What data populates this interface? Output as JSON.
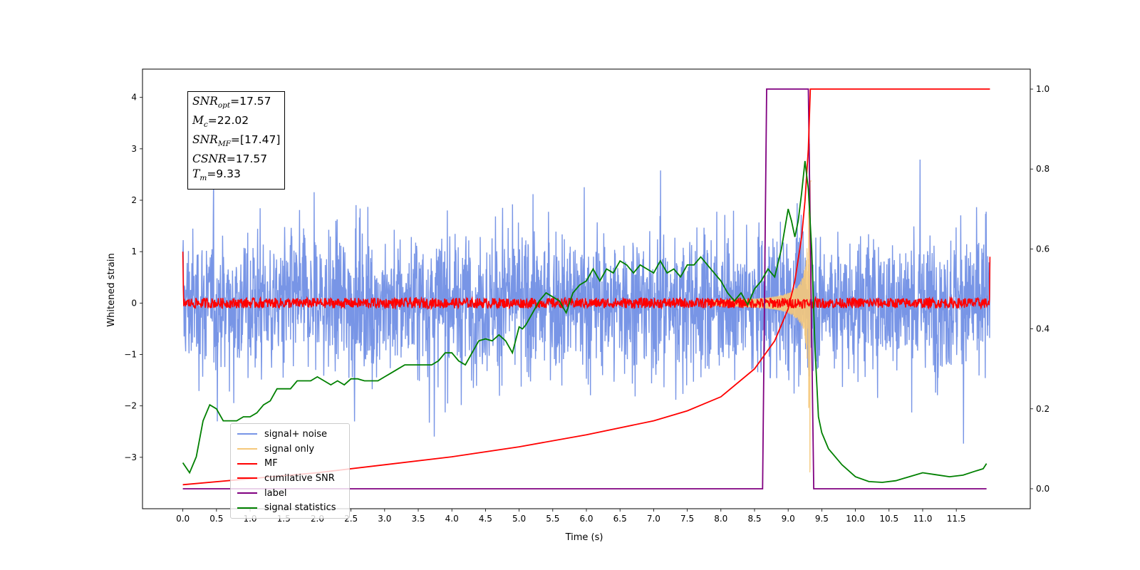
{
  "chart_data": {
    "type": "line",
    "xlabel": "Time (s)",
    "ylabel": "Whitened strain",
    "xlim": [
      -0.6,
      12.6
    ],
    "ylim_left": [
      -4.0,
      4.55
    ],
    "ylim_right": [
      -0.05,
      1.05
    ],
    "x_ticks": [
      "0.0",
      "0.5",
      "1.0",
      "1.5",
      "2.0",
      "2.5",
      "3.0",
      "3.5",
      "4.0",
      "4.5",
      "5.0",
      "5.5",
      "6.0",
      "6.5",
      "7.0",
      "7.5",
      "8.0",
      "8.5",
      "9.0",
      "9.5",
      "10.0",
      "10.5",
      "11.0",
      "11.5"
    ],
    "y_left_ticks": [
      "4",
      "3",
      "2",
      "1",
      "0",
      "−1",
      "−2",
      "−3"
    ],
    "y_left_tick_values": [
      4,
      3,
      2,
      1,
      0,
      -1,
      -2,
      -3
    ],
    "y_right_ticks": [
      "1.0",
      "0.8",
      "0.6",
      "0.4",
      "0.2",
      "0.0"
    ],
    "y_right_tick_values": [
      1.0,
      0.8,
      0.6,
      0.4,
      0.2,
      0.0
    ],
    "annotation": {
      "snr_opt_label": "SNR",
      "snr_opt_sub": "opt",
      "snr_opt_value": "=17.57",
      "mc_label": "M",
      "mc_sub": "c",
      "mc_value": "=22.02",
      "snr_mf_label": "SNR",
      "snr_mf_sub": "MF",
      "snr_mf_value": "=[17.47]",
      "csnr_label": "CSNR",
      "csnr_value": "=17.57",
      "tm_label": "T",
      "tm_sub": "m",
      "tm_value": "=9.33"
    },
    "legend_position": "lower-left",
    "series": [
      {
        "name": "signal+ noise",
        "color": "#7895e6",
        "axis": "left",
        "description_values": {
          "x_range": [
            0.0,
            12.0
          ],
          "noise_std": 0.95,
          "max_peak": 3.5,
          "min_peak": -3.55
        }
      },
      {
        "name": "signal only",
        "color": "#f5c87a",
        "axis": "left",
        "chirp": {
          "t_merger": 9.33,
          "amplitude_at_merger": 3.3,
          "amplitude_at_8": 0.05
        }
      },
      {
        "name": "MF",
        "color": "#ff0000",
        "axis": "left",
        "description_values": {
          "baseline": 0.0,
          "ripple": 0.1,
          "start_value": 1.0,
          "end_value": 0.9
        }
      },
      {
        "name": "cumilative SNR",
        "color": "#ff0000",
        "axis": "right",
        "x": [
          0.0,
          1.0,
          2.0,
          3.0,
          4.0,
          5.0,
          6.0,
          7.0,
          7.5,
          8.0,
          8.5,
          8.8,
          9.0,
          9.1,
          9.2,
          9.25,
          9.3,
          9.33,
          9.35,
          12.0
        ],
        "y": [
          0.01,
          0.025,
          0.04,
          0.06,
          0.08,
          0.105,
          0.135,
          0.17,
          0.195,
          0.23,
          0.3,
          0.37,
          0.45,
          0.52,
          0.63,
          0.72,
          0.85,
          1.0,
          1.0,
          1.0
        ]
      },
      {
        "name": "label",
        "color": "#800080",
        "axis": "right",
        "x": [
          0.0,
          8.62,
          8.68,
          9.3,
          9.38,
          11.95
        ],
        "y": [
          0.0,
          0.0,
          1.0,
          1.0,
          0.0,
          0.0
        ]
      },
      {
        "name": "signal statistics",
        "color": "#008000",
        "axis": "right",
        "x": [
          0.0,
          0.1,
          0.2,
          0.3,
          0.4,
          0.5,
          0.6,
          0.7,
          0.8,
          0.9,
          1.0,
          1.1,
          1.2,
          1.3,
          1.4,
          1.5,
          1.6,
          1.7,
          1.8,
          1.9,
          2.0,
          2.1,
          2.2,
          2.3,
          2.4,
          2.5,
          2.6,
          2.7,
          2.8,
          2.9,
          3.0,
          3.1,
          3.2,
          3.3,
          3.4,
          3.5,
          3.6,
          3.7,
          3.8,
          3.9,
          4.0,
          4.1,
          4.2,
          4.3,
          4.4,
          4.5,
          4.6,
          4.7,
          4.8,
          4.9,
          5.0,
          5.05,
          5.1,
          5.2,
          5.3,
          5.4,
          5.5,
          5.6,
          5.7,
          5.8,
          5.9,
          6.0,
          6.1,
          6.2,
          6.3,
          6.4,
          6.5,
          6.6,
          6.7,
          6.8,
          6.9,
          7.0,
          7.1,
          7.2,
          7.3,
          7.4,
          7.5,
          7.6,
          7.7,
          7.8,
          7.9,
          8.0,
          8.1,
          8.2,
          8.3,
          8.4,
          8.5,
          8.6,
          8.7,
          8.8,
          8.9,
          9.0,
          9.05,
          9.1,
          9.15,
          9.2,
          9.25,
          9.3,
          9.35,
          9.4,
          9.45,
          9.5,
          9.6,
          9.8,
          10.0,
          10.2,
          10.4,
          10.6,
          10.8,
          11.0,
          11.2,
          11.4,
          11.6,
          11.8,
          11.9,
          11.95
        ],
        "y": [
          0.065,
          0.04,
          0.08,
          0.17,
          0.21,
          0.2,
          0.17,
          0.17,
          0.17,
          0.18,
          0.18,
          0.19,
          0.21,
          0.22,
          0.25,
          0.25,
          0.25,
          0.27,
          0.27,
          0.27,
          0.28,
          0.27,
          0.26,
          0.27,
          0.26,
          0.275,
          0.275,
          0.27,
          0.27,
          0.27,
          0.28,
          0.29,
          0.3,
          0.31,
          0.31,
          0.31,
          0.31,
          0.31,
          0.32,
          0.34,
          0.34,
          0.32,
          0.31,
          0.34,
          0.37,
          0.375,
          0.37,
          0.385,
          0.37,
          0.34,
          0.405,
          0.4,
          0.41,
          0.44,
          0.47,
          0.49,
          0.48,
          0.47,
          0.44,
          0.49,
          0.51,
          0.52,
          0.55,
          0.52,
          0.55,
          0.54,
          0.57,
          0.56,
          0.54,
          0.56,
          0.55,
          0.54,
          0.57,
          0.54,
          0.55,
          0.53,
          0.56,
          0.56,
          0.58,
          0.56,
          0.54,
          0.52,
          0.49,
          0.47,
          0.49,
          0.46,
          0.5,
          0.52,
          0.55,
          0.53,
          0.6,
          0.7,
          0.67,
          0.63,
          0.67,
          0.74,
          0.82,
          0.75,
          0.6,
          0.35,
          0.18,
          0.14,
          0.1,
          0.06,
          0.03,
          0.018,
          0.016,
          0.02,
          0.03,
          0.04,
          0.035,
          0.03,
          0.034,
          0.045,
          0.05,
          0.063
        ]
      }
    ]
  }
}
